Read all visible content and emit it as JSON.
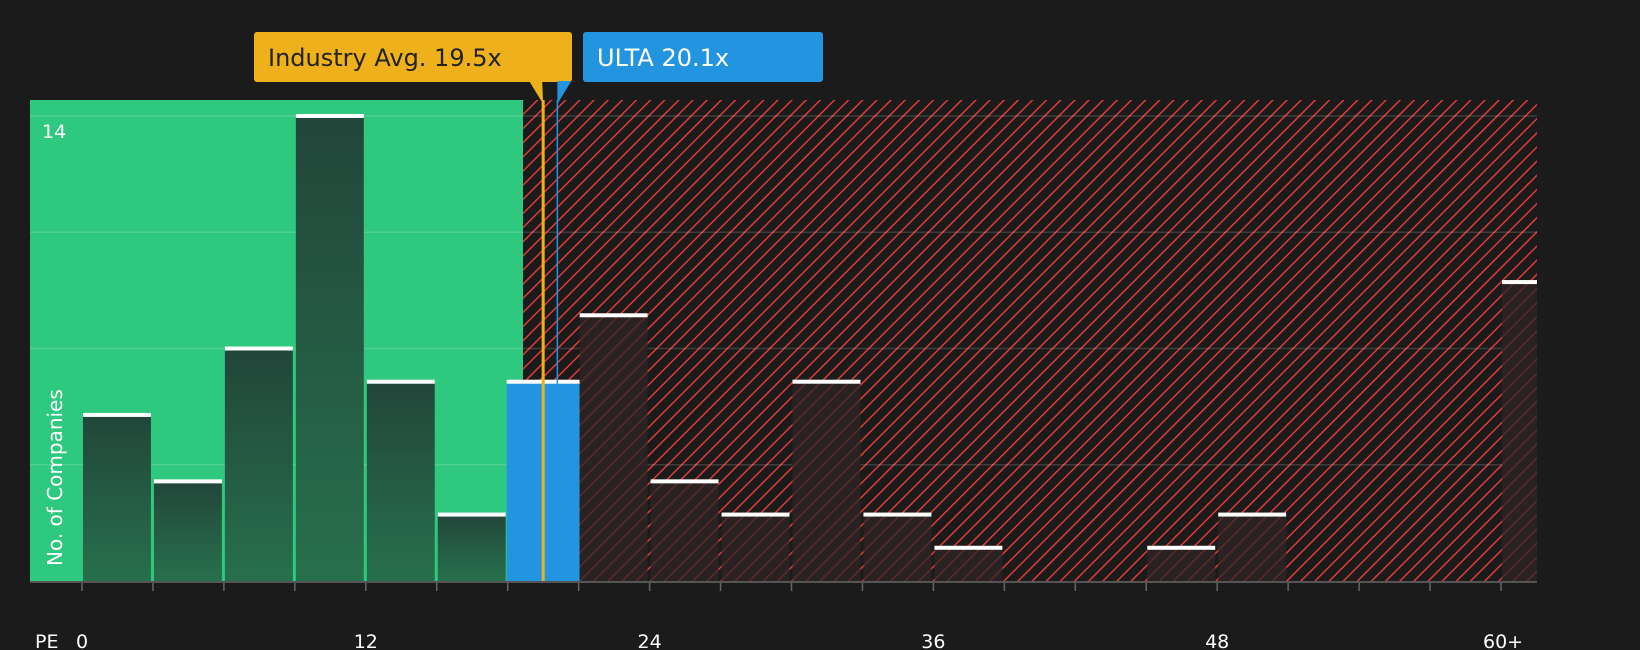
{
  "chart_data": {
    "type": "bar",
    "xlabel": "PE",
    "ylabel": "No. of Companies",
    "x_tick_labels": [
      "0",
      "12",
      "24",
      "36",
      "48",
      "60+"
    ],
    "x_tick_values": [
      0,
      12,
      24,
      36,
      48,
      60
    ],
    "y_tick_labels": [
      "14"
    ],
    "ylim": [
      0,
      14
    ],
    "xlim": [
      -2.2,
      61.5
    ],
    "bin_width": 3,
    "bins": [
      0,
      3,
      6,
      9,
      12,
      15,
      18,
      21,
      24,
      27,
      30,
      33,
      36,
      39,
      42,
      45,
      48,
      51,
      54,
      57,
      60
    ],
    "values": [
      5,
      3,
      7,
      14,
      6,
      2,
      6,
      8,
      3,
      2,
      6,
      2,
      1,
      0,
      0,
      1,
      2,
      0,
      0,
      0,
      9
    ],
    "highlight_bin": 18,
    "grid": true,
    "fair_region_end": 18.65,
    "annotations": [
      {
        "label": "Industry Avg. 19.5x",
        "value": 19.5,
        "color": "#eeb11b"
      },
      {
        "label": "ULTA 20.1x",
        "value": 20.1,
        "color": "#2394e0"
      }
    ],
    "colors": {
      "background": "#1b1b1b",
      "green_region": "#2ec87f",
      "red_hatch": "#e03a3a",
      "bar_green_region": "#234a38",
      "bar_red_region": "#2a2222",
      "highlight": "#2394e0",
      "bar_cap": "#ffffff"
    }
  }
}
